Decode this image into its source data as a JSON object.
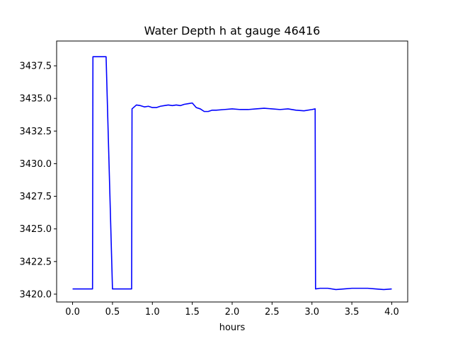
{
  "chart_data": {
    "type": "line",
    "title": "Water Depth h at gauge 46416",
    "xlabel": "hours",
    "ylabel": "",
    "xlim": [
      -0.2,
      4.2
    ],
    "ylim": [
      3419.4,
      3439.4
    ],
    "xticks": [
      0.0,
      0.5,
      1.0,
      1.5,
      2.0,
      2.5,
      3.0,
      3.5,
      4.0
    ],
    "xtick_labels": [
      "0.0",
      "0.5",
      "1.0",
      "1.5",
      "2.0",
      "2.5",
      "3.0",
      "3.5",
      "4.0"
    ],
    "yticks": [
      3420.0,
      3422.5,
      3425.0,
      3427.5,
      3430.0,
      3432.5,
      3435.0,
      3437.5
    ],
    "ytick_labels": [
      "3420.0",
      "3422.5",
      "3425.0",
      "3427.5",
      "3430.0",
      "3432.5",
      "3435.0",
      "3437.5"
    ],
    "grid": false,
    "series": [
      {
        "color": "#0000ff",
        "x": [
          0.0,
          0.25,
          0.255,
          0.42,
          0.5,
          0.74,
          0.745,
          0.8,
          0.85,
          0.9,
          0.95,
          1.0,
          1.05,
          1.1,
          1.15,
          1.2,
          1.25,
          1.3,
          1.35,
          1.4,
          1.45,
          1.5,
          1.55,
          1.6,
          1.65,
          1.7,
          1.75,
          1.8,
          1.9,
          2.0,
          2.1,
          2.2,
          2.3,
          2.4,
          2.5,
          2.6,
          2.7,
          2.8,
          2.9,
          3.0,
          3.04,
          3.045,
          3.1,
          3.2,
          3.3,
          3.4,
          3.5,
          3.6,
          3.7,
          3.8,
          3.9,
          4.0
        ],
        "y": [
          3420.4,
          3420.4,
          3438.2,
          3438.2,
          3420.4,
          3420.4,
          3434.2,
          3434.5,
          3434.45,
          3434.35,
          3434.4,
          3434.3,
          3434.3,
          3434.4,
          3434.45,
          3434.5,
          3434.45,
          3434.5,
          3434.45,
          3434.55,
          3434.6,
          3434.65,
          3434.3,
          3434.2,
          3434.0,
          3434.0,
          3434.1,
          3434.1,
          3434.15,
          3434.2,
          3434.15,
          3434.15,
          3434.2,
          3434.25,
          3434.2,
          3434.15,
          3434.2,
          3434.1,
          3434.05,
          3434.15,
          3434.2,
          3420.4,
          3420.45,
          3420.45,
          3420.35,
          3420.4,
          3420.45,
          3420.45,
          3420.45,
          3420.4,
          3420.35,
          3420.4
        ]
      }
    ]
  }
}
